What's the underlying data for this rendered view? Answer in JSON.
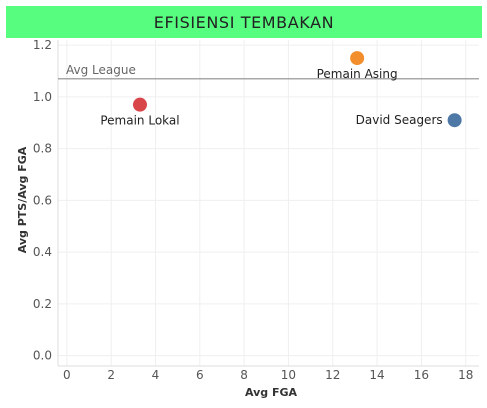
{
  "chart_data": {
    "type": "scatter",
    "title": "EFISIENSI TEMBAKAN",
    "xlabel": "Avg FGA",
    "ylabel": "Avg PTS/Avg FGA",
    "xlim": [
      -0.4,
      18.6
    ],
    "ylim": [
      -0.04,
      1.22
    ],
    "x_ticks": [
      "0",
      "2",
      "4",
      "6",
      "8",
      "10",
      "12",
      "14",
      "16",
      "18"
    ],
    "y_ticks": [
      "0.0",
      "0.2",
      "0.4",
      "0.6",
      "0.8",
      "1.0",
      "1.2"
    ],
    "grid": true,
    "reference_line": {
      "label": "Avg League",
      "y": 1.07,
      "color": "#8c8c8c"
    },
    "points": [
      {
        "label": "Pemain Lokal",
        "x": 3.3,
        "y": 0.97,
        "color": "#d9464a",
        "label_position": "below"
      },
      {
        "label": "Pemain Asing",
        "x": 13.1,
        "y": 1.15,
        "color": "#f28e2b",
        "label_position": "below"
      },
      {
        "label": "David Seagers",
        "x": 17.5,
        "y": 0.91,
        "color": "#4e79a7",
        "label_position": "left"
      }
    ]
  }
}
